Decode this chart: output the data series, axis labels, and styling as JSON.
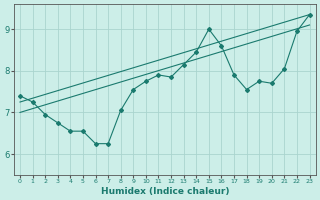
{
  "xlabel": "Humidex (Indice chaleur)",
  "ylabel": "",
  "bg_color": "#cceee8",
  "grid_color": "#aad4ce",
  "line_color": "#1a7a6e",
  "xlim": [
    -0.5,
    23.5
  ],
  "ylim": [
    5.5,
    9.6
  ],
  "yticks": [
    6,
    7,
    8,
    9
  ],
  "xticks": [
    0,
    1,
    2,
    3,
    4,
    5,
    6,
    7,
    8,
    9,
    10,
    11,
    12,
    13,
    14,
    15,
    16,
    17,
    18,
    19,
    20,
    21,
    22,
    23
  ],
  "series1_x": [
    0,
    1,
    2,
    3,
    4,
    5,
    6,
    7,
    8,
    9,
    10,
    11,
    12,
    13,
    14,
    15,
    16,
    17,
    18,
    19,
    20,
    21,
    22,
    23
  ],
  "series1_y": [
    7.4,
    7.25,
    6.95,
    6.75,
    6.55,
    6.55,
    6.25,
    6.25,
    7.05,
    7.55,
    7.75,
    7.9,
    7.85,
    8.15,
    8.45,
    9.0,
    8.6,
    7.9,
    7.55,
    7.75,
    7.7,
    8.05,
    8.95,
    9.35
  ],
  "series2_x": [
    0,
    23
  ],
  "series2_y": [
    7.25,
    9.35
  ],
  "series3_x": [
    0,
    23
  ],
  "series3_y": [
    7.0,
    9.1
  ]
}
